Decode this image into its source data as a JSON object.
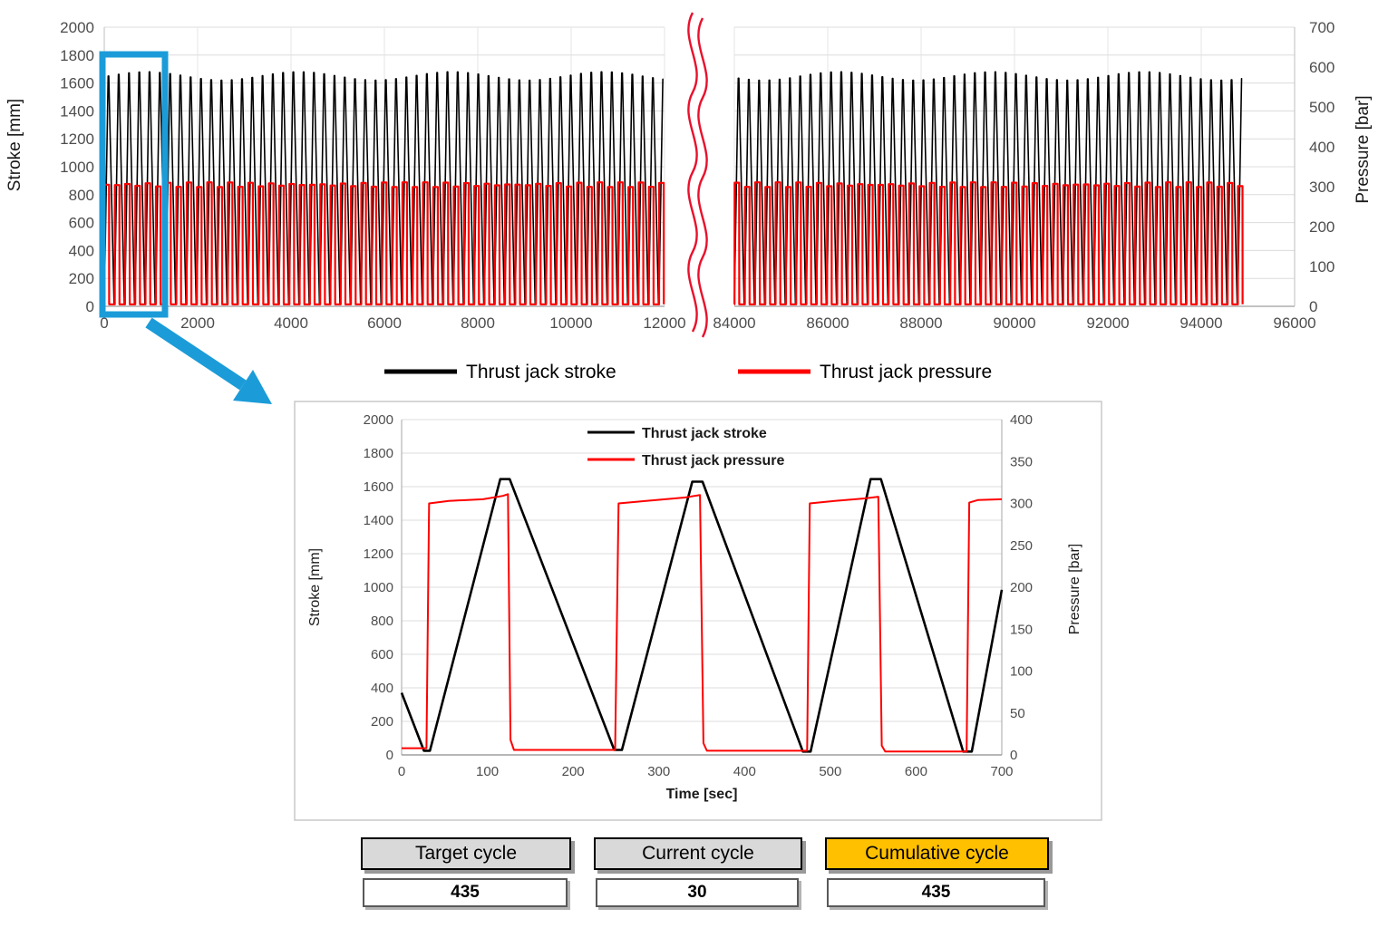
{
  "counters": [
    {
      "label": "Target cycle",
      "value": "435",
      "header_color": "#d9d9d9"
    },
    {
      "label": "Current cycle",
      "value": "30",
      "header_color": "#d9d9d9"
    },
    {
      "label": "Cumulative cycle",
      "value": "435",
      "header_color": "#ffc000"
    }
  ],
  "annotations": {
    "highlight_box_color": "#1b9cd8",
    "arrow_color": "#1b9cd8",
    "axis_break_color": "#e8112d"
  },
  "chart_data": [
    {
      "id": "overview",
      "type": "line",
      "title": "",
      "x_axis": {
        "label": "",
        "broken": true,
        "panels": [
          {
            "min": 0,
            "max": 12000,
            "tick_step": 2000,
            "data_end": 12000
          },
          {
            "min": 84000,
            "max": 96000,
            "tick_step": 2000,
            "data_end": 94900
          }
        ]
      },
      "y_left": {
        "label": "Stroke [mm]",
        "min": 0,
        "max": 2000,
        "tick_step": 200
      },
      "y_right": {
        "label": "Pressure [bar]",
        "min": 0,
        "max": 700,
        "tick_step": 100
      },
      "series": [
        {
          "name": "Thrust jack stroke",
          "color": "#000000",
          "axis": "left",
          "waveform": {
            "type": "cyclic-triangle",
            "period_sec": 220,
            "base": 20,
            "peak_mean": 1650,
            "peak_variation": 30,
            "rise_frac": 0.38,
            "plateau_frac": 0.06,
            "fall_end_frac": 0.95
          }
        },
        {
          "name": "Thrust jack pressure",
          "color": "#ff0000",
          "axis": "right",
          "waveform": {
            "type": "cyclic-square",
            "period_sec": 220,
            "low": 5,
            "high": 305,
            "high_variation": 6,
            "high_start_frac": 0.02,
            "high_end_frac": 0.47
          }
        }
      ],
      "legend": {
        "position": "bottom",
        "items": [
          {
            "label": "Thrust jack stroke",
            "color": "#000000"
          },
          {
            "label": "Thrust jack pressure",
            "color": "#ff0000"
          }
        ]
      }
    },
    {
      "id": "zoom-inset",
      "type": "line",
      "title": "",
      "x_axis": {
        "label": "Time [sec]",
        "min": 0,
        "max": 700,
        "tick_step": 100
      },
      "y_left": {
        "label": "Stroke [mm]",
        "min": 0,
        "max": 2000,
        "tick_step": 200
      },
      "y_right": {
        "label": "Pressure [bar]",
        "min": 0,
        "max": 400,
        "tick_step": 50
      },
      "series": [
        {
          "name": "Thrust jack stroke",
          "color": "#000000",
          "axis": "left",
          "points": [
            [
              0,
              370
            ],
            [
              26,
              25
            ],
            [
              33,
              25
            ],
            [
              115,
              1645
            ],
            [
              126,
              1645
            ],
            [
              248,
              30
            ],
            [
              257,
              30
            ],
            [
              339,
              1630
            ],
            [
              351,
              1630
            ],
            [
              468,
              20
            ],
            [
              477,
              20
            ],
            [
              547,
              1645
            ],
            [
              559,
              1645
            ],
            [
              655,
              20
            ],
            [
              665,
              20
            ],
            [
              700,
              985
            ]
          ]
        },
        {
          "name": "Thrust jack pressure",
          "color": "#ff0000",
          "axis": "right",
          "points": [
            [
              0,
              8
            ],
            [
              29,
              8
            ],
            [
              32,
              300
            ],
            [
              55,
              303
            ],
            [
              95,
              305
            ],
            [
              118,
              309
            ],
            [
              124,
              311
            ],
            [
              127,
              18
            ],
            [
              131,
              6
            ],
            [
              249,
              6
            ],
            [
              253,
              300
            ],
            [
              285,
              303
            ],
            [
              330,
              307
            ],
            [
              348,
              310
            ],
            [
              352,
              14
            ],
            [
              356,
              5
            ],
            [
              473,
              5
            ],
            [
              476,
              300
            ],
            [
              505,
              303
            ],
            [
              540,
              306
            ],
            [
              556,
              308
            ],
            [
              560,
              11
            ],
            [
              564,
              4
            ],
            [
              659,
              4
            ],
            [
              662,
              301
            ],
            [
              672,
              304
            ],
            [
              700,
              305
            ]
          ]
        }
      ],
      "legend": {
        "position": "top-center",
        "items": [
          {
            "label": "Thrust jack stroke",
            "color": "#000000"
          },
          {
            "label": "Thrust jack pressure",
            "color": "#ff0000"
          }
        ]
      }
    }
  ]
}
